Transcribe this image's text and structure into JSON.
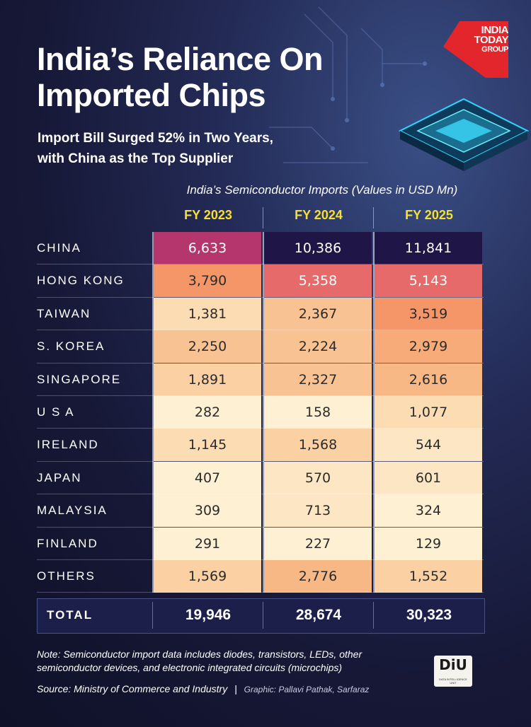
{
  "header": {
    "title_line1": "India’s Reliance On",
    "title_line2": "Imported Chips",
    "subtitle_line1": "Import Bill Surged 52% in Two Years,",
    "subtitle_line2": "with China as the Top Supplier"
  },
  "brand": {
    "logo_line1": "INDIA",
    "logo_line2": "TODAY",
    "logo_line3": "GROUP",
    "logo_color": "#e3262b",
    "diu_mark": "DiU",
    "diu_sub": "DATA INTELLIGENCE UNIT"
  },
  "chart_data": {
    "type": "table",
    "title": "India’s Semiconductor Imports (Values in USD Mn)",
    "columns": [
      "FY 2023",
      "FY 2024",
      "FY 2025"
    ],
    "rows": [
      {
        "label": "CHINA",
        "values": [
          6633,
          10386,
          11841
        ],
        "display": [
          "6,633",
          "10,386",
          "11,841"
        ]
      },
      {
        "label": "HONG KONG",
        "values": [
          3790,
          5358,
          5143
        ],
        "display": [
          "3,790",
          "5,358",
          "5,143"
        ]
      },
      {
        "label": "TAIWAN",
        "values": [
          1381,
          2367,
          3519
        ],
        "display": [
          "1,381",
          "2,367",
          "3,519"
        ]
      },
      {
        "label": "S. KOREA",
        "values": [
          2250,
          2224,
          2979
        ],
        "display": [
          "2,250",
          "2,224",
          "2,979"
        ]
      },
      {
        "label": "SINGAPORE",
        "values": [
          1891,
          2327,
          2616
        ],
        "display": [
          "1,891",
          "2,327",
          "2,616"
        ]
      },
      {
        "label": "U S A",
        "values": [
          282,
          158,
          1077
        ],
        "display": [
          "282",
          "158",
          "1,077"
        ]
      },
      {
        "label": "IRELAND",
        "values": [
          1145,
          1568,
          544
        ],
        "display": [
          "1,145",
          "1,568",
          "544"
        ]
      },
      {
        "label": "JAPAN",
        "values": [
          407,
          570,
          601
        ],
        "display": [
          "407",
          "570",
          "601"
        ]
      },
      {
        "label": "MALAYSIA",
        "values": [
          309,
          713,
          324
        ],
        "display": [
          "309",
          "713",
          "324"
        ]
      },
      {
        "label": "FINLAND",
        "values": [
          291,
          227,
          129
        ],
        "display": [
          "291",
          "227",
          "129"
        ]
      },
      {
        "label": "OTHERS",
        "values": [
          1569,
          2776,
          1552
        ],
        "display": [
          "1,569",
          "2,776",
          "1,552"
        ]
      }
    ],
    "total": {
      "label": "TOTAL",
      "values": [
        19946,
        28674,
        30323
      ],
      "display": [
        "19,946",
        "28,674",
        "30,323"
      ]
    },
    "color_scale": {
      "low": "#fdf1cd",
      "mid_low": "#fbd3a0",
      "mid": "#f6a06c",
      "mid_high": "#e76a6a",
      "high": "#b5356d",
      "very_high": "#4a1a66",
      "max": "#1f1546"
    }
  },
  "footer": {
    "note_line1": "Note: Semiconductor import data includes diodes, transistors, LEDs, other",
    "note_line2": "semiconductor devices, and electronic integrated circuits (microchips)",
    "source": "Source: Ministry of Commerce and Industry",
    "separator": "|",
    "credit": "Graphic: Pallavi Pathak, Sarfaraz"
  }
}
